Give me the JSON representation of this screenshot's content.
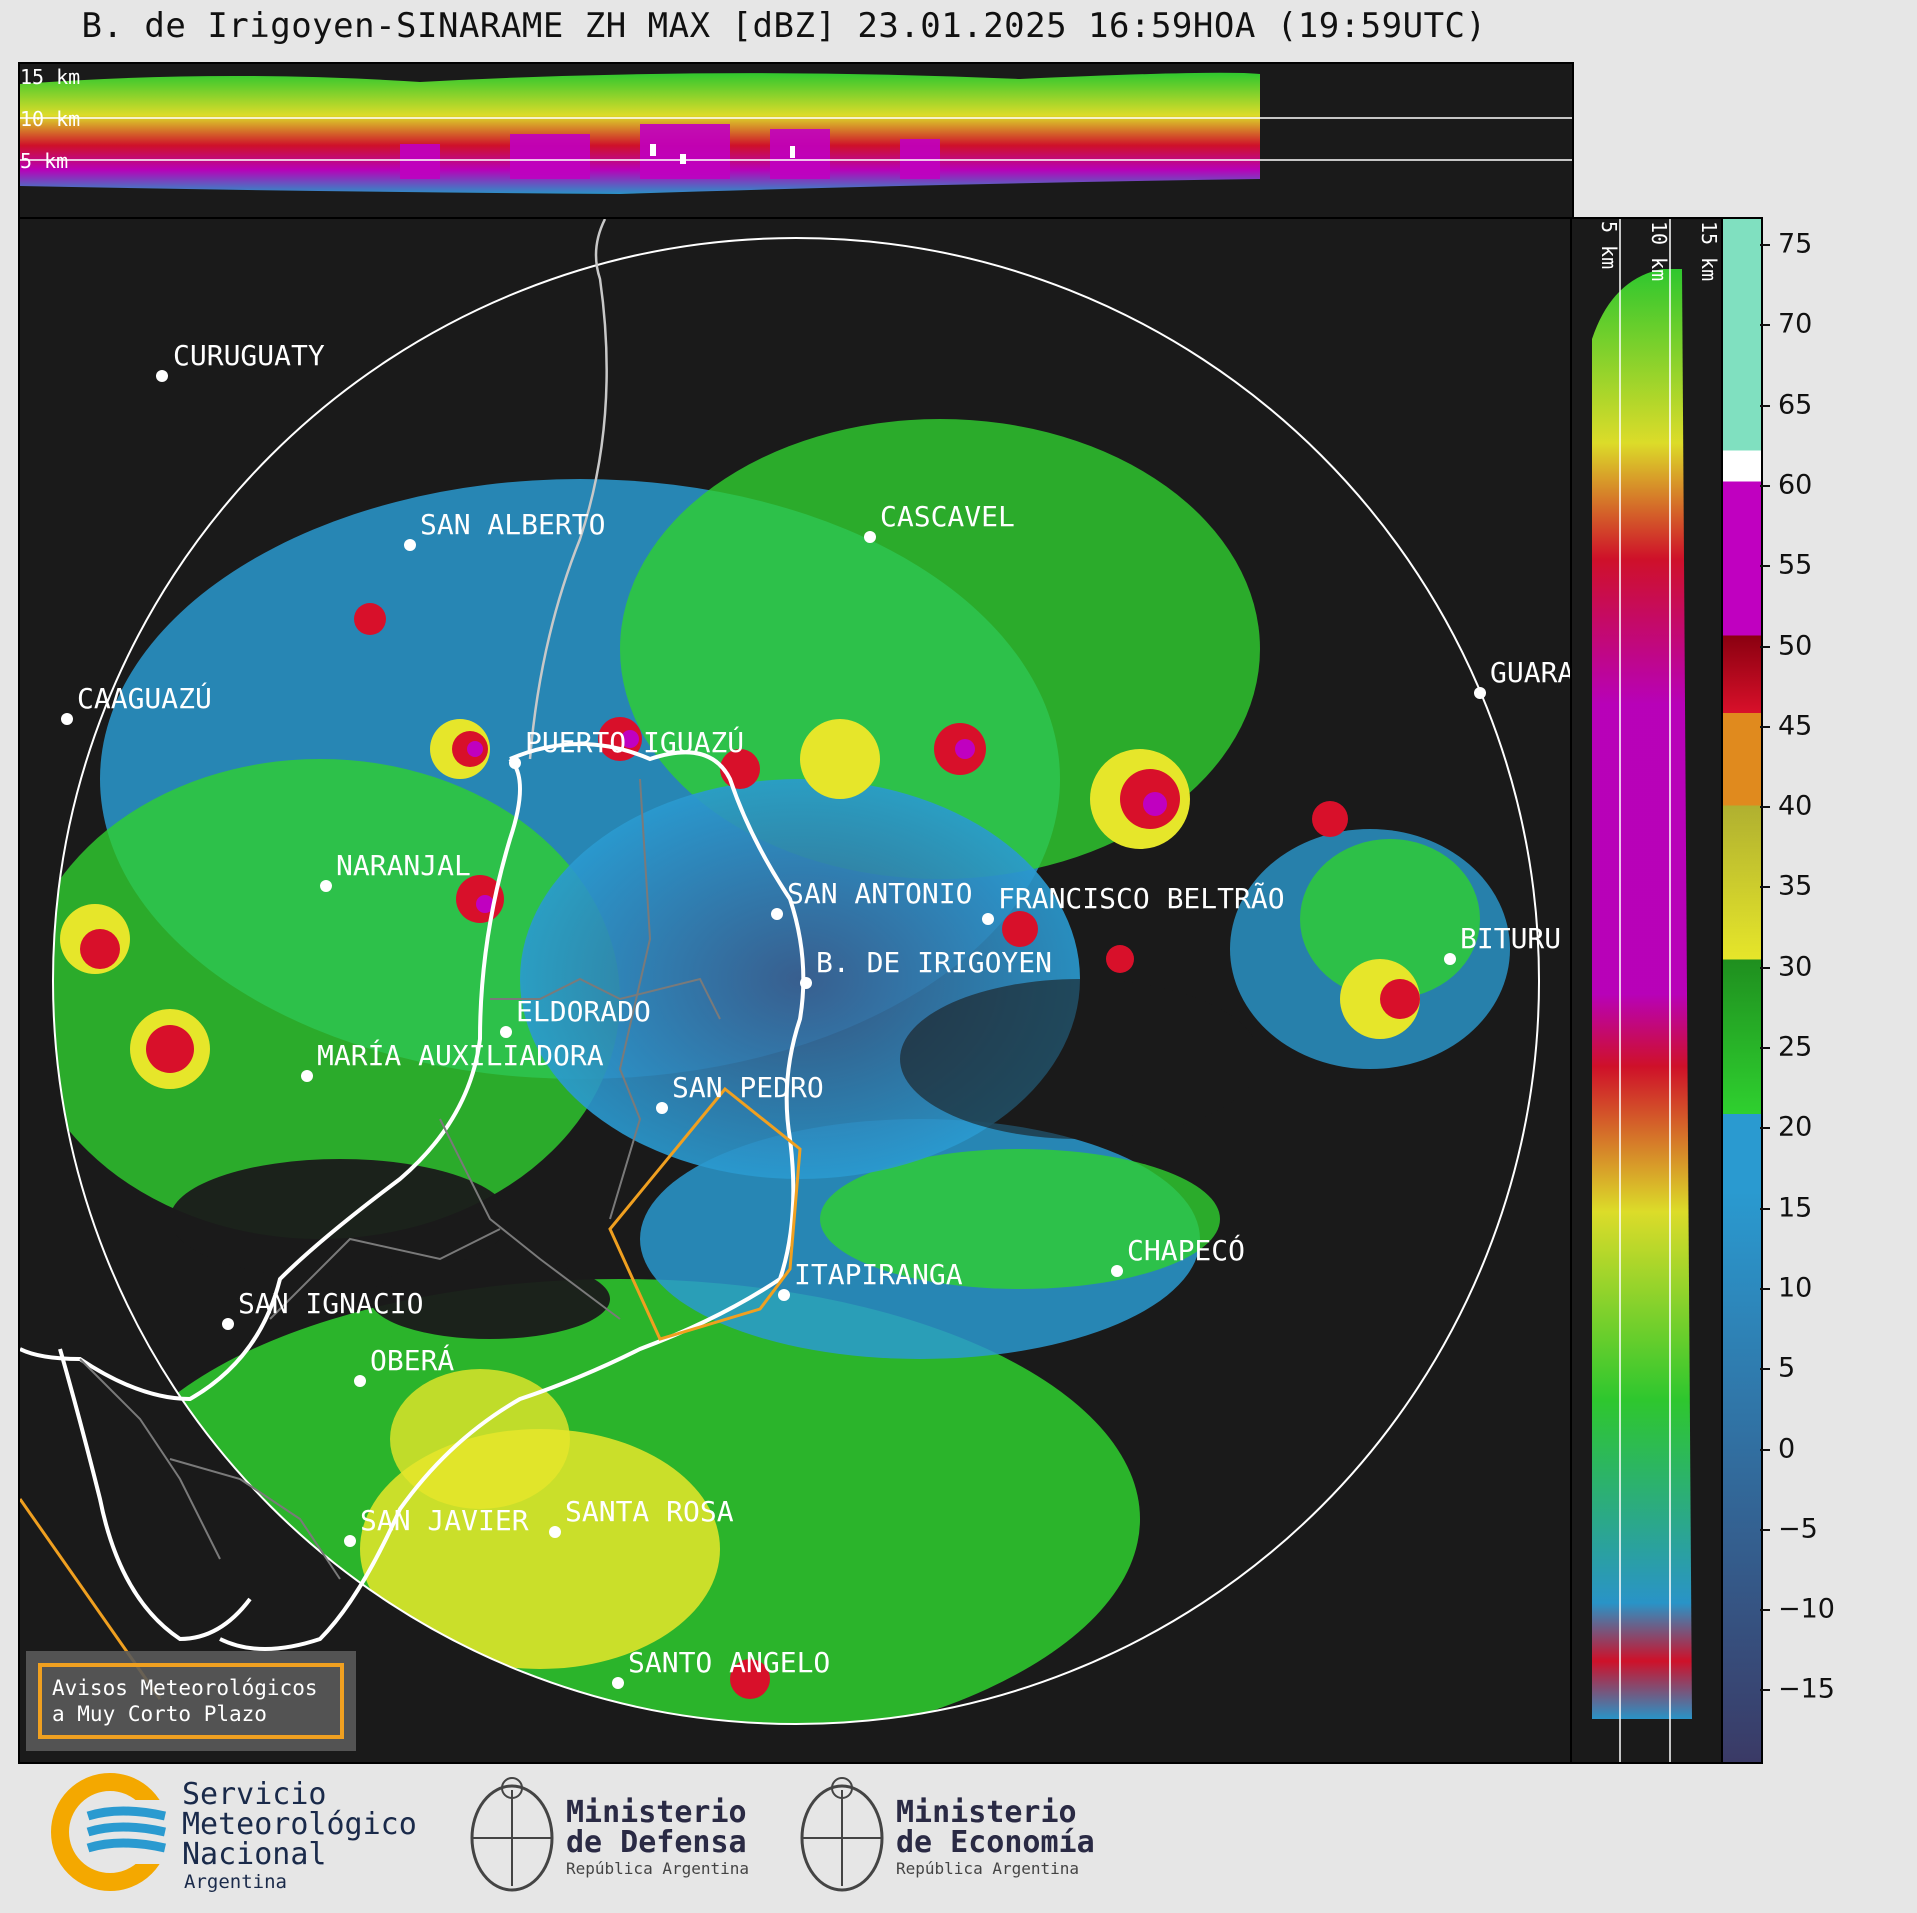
{
  "title": "B. de Irigoyen-SINARAME ZH MAX [dBZ] 23.01.2025 16:59HOA (19:59UTC)",
  "top_strip": {
    "height_labels": [
      "15 km",
      "10 km",
      "5 km"
    ]
  },
  "side_strip": {
    "height_labels": [
      "5 km",
      "10 km",
      "15 km"
    ]
  },
  "colorbar": {
    "unit": "dBZ",
    "ticks": [
      "75",
      "70",
      "65",
      "60",
      "55",
      "50",
      "45",
      "40",
      "35",
      "30",
      "25",
      "20",
      "15",
      "10",
      "5",
      "0",
      "−5",
      "−10",
      "−15"
    ],
    "colors": {
      "min": "#3a3a66",
      "blue": "#2a9ad0",
      "green": "#2fd02f",
      "yellow": "#e6e62a",
      "orange": "#e08a1e",
      "red": "#d8102a",
      "magenta": "#c000c0",
      "white": "#ffffff",
      "teal": "#80e0c0"
    }
  },
  "locations": {
    "curuguaty": "CURUGUATY",
    "san_alberto": "SAN ALBERTO",
    "cascavel": "CASCAVEL",
    "caaguazu": "CAAGUAZÚ",
    "guara": "GUARA",
    "puerto_iguazu": "PUERTO IGUAZÚ",
    "naranjal": "NARANJAL",
    "san_antonio": "SAN ANTONIO",
    "francisco_beltrao": "FRANCISCO BELTRÃO",
    "bituru": "BITURU",
    "b_de_irigoyen": "B. DE IRIGOYEN",
    "eldorado": "ELDORADO",
    "maria_auxiliadora": "MARÍA AUXILIADORA",
    "san_pedro": "SAN PEDRO",
    "chapeco": "CHAPECÓ",
    "itapiranga": "ITAPIRANGA",
    "san_ignacio": "SAN IGNACIO",
    "obera": "OBERÁ",
    "san_javier": "SAN JAVIER",
    "santa_rosa": "SANTA ROSA",
    "santo_angelo": "SANTO ANGELO"
  },
  "warning_box": {
    "line1": "Avisos Meteorológicos",
    "line2": "a Muy Corto Plazo",
    "border_color": "#f0a020"
  },
  "logos": {
    "smn": {
      "line1": "Servicio",
      "line2": "Meteorológico",
      "line3": "Nacional",
      "line4": "Argentina"
    },
    "defensa": {
      "line1": "Ministerio",
      "line2": "de Defensa",
      "line3": "República Argentina"
    },
    "economia": {
      "line1": "Ministerio",
      "line2": "de Economía",
      "line3": "República Argentina"
    }
  }
}
